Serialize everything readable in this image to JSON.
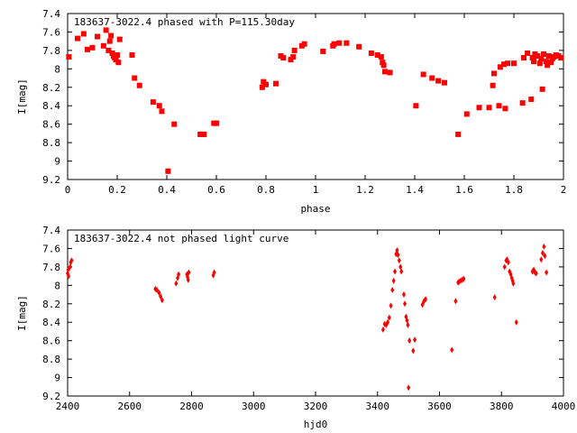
{
  "colors": {
    "points": "#ff0000",
    "axes": "#000000",
    "background": "#ffffff"
  },
  "chart_data": [
    {
      "type": "scatter",
      "title": "183637-3022.4 phased with P=115.30day",
      "xlabel": "phase",
      "ylabel": "I[mag]",
      "xlim": [
        0,
        2
      ],
      "ylim": [
        7.4,
        9.2
      ],
      "y_inverted": true,
      "grid": false,
      "legend": "none",
      "marker": "filled-square",
      "xticks": [
        "0",
        "0.2",
        "0.4",
        "0.6",
        "0.8",
        "1",
        "1.2",
        "1.4",
        "1.6",
        "1.8",
        "2"
      ],
      "yticks": [
        "7.4",
        "7.6",
        "7.8",
        "8",
        "8.2",
        "8.4",
        "8.6",
        "8.8",
        "9",
        "9.2"
      ],
      "points": [
        [
          0.005,
          7.87
        ],
        [
          0.04,
          7.67
        ],
        [
          0.065,
          7.62
        ],
        [
          0.08,
          7.79
        ],
        [
          0.1,
          7.77
        ],
        [
          0.12,
          7.65
        ],
        [
          0.145,
          7.75
        ],
        [
          0.155,
          7.58
        ],
        [
          0.165,
          7.8
        ],
        [
          0.17,
          7.7
        ],
        [
          0.175,
          7.64
        ],
        [
          0.18,
          7.83
        ],
        [
          0.185,
          7.86
        ],
        [
          0.19,
          7.88
        ],
        [
          0.195,
          7.9
        ],
        [
          0.2,
          7.85
        ],
        [
          0.205,
          7.93
        ],
        [
          0.21,
          7.68
        ],
        [
          0.26,
          7.85
        ],
        [
          0.27,
          8.1
        ],
        [
          0.29,
          8.18
        ],
        [
          0.345,
          8.36
        ],
        [
          0.37,
          8.4
        ],
        [
          0.38,
          8.46
        ],
        [
          0.405,
          9.11
        ],
        [
          0.43,
          8.6
        ],
        [
          0.535,
          8.71
        ],
        [
          0.55,
          8.71
        ],
        [
          0.59,
          8.59
        ],
        [
          0.6,
          8.59
        ],
        [
          0.785,
          8.2
        ],
        [
          0.79,
          8.14
        ],
        [
          0.8,
          8.17
        ],
        [
          0.84,
          8.16
        ],
        [
          0.86,
          7.86
        ],
        [
          0.87,
          7.88
        ],
        [
          0.9,
          7.9
        ],
        [
          0.91,
          7.87
        ],
        [
          0.915,
          7.8
        ],
        [
          0.945,
          7.75
        ],
        [
          0.955,
          7.73
        ],
        [
          1.03,
          7.81
        ],
        [
          1.07,
          7.75
        ],
        [
          1.075,
          7.73
        ],
        [
          1.095,
          7.72
        ],
        [
          1.125,
          7.72
        ],
        [
          1.175,
          7.76
        ],
        [
          1.225,
          7.83
        ],
        [
          1.25,
          7.85
        ],
        [
          1.265,
          7.87
        ],
        [
          1.27,
          7.93
        ],
        [
          1.275,
          7.96
        ],
        [
          1.28,
          8.03
        ],
        [
          1.3,
          8.04
        ],
        [
          1.405,
          8.4
        ],
        [
          1.435,
          8.06
        ],
        [
          1.47,
          8.1
        ],
        [
          1.495,
          8.13
        ],
        [
          1.52,
          8.15
        ],
        [
          1.575,
          8.71
        ],
        [
          1.61,
          8.49
        ],
        [
          1.66,
          8.42
        ],
        [
          1.7,
          8.42
        ],
        [
          1.715,
          8.18
        ],
        [
          1.72,
          8.05
        ],
        [
          1.74,
          8.4
        ],
        [
          1.745,
          7.98
        ],
        [
          1.76,
          7.95
        ],
        [
          1.765,
          8.43
        ],
        [
          1.775,
          7.94
        ],
        [
          1.8,
          7.94
        ],
        [
          1.835,
          8.37
        ],
        [
          1.84,
          7.88
        ],
        [
          1.855,
          7.83
        ],
        [
          1.87,
          8.33
        ],
        [
          1.875,
          7.88
        ],
        [
          1.88,
          7.92
        ],
        [
          1.885,
          7.84
        ],
        [
          1.895,
          7.86
        ],
        [
          1.905,
          7.94
        ],
        [
          1.91,
          7.89
        ],
        [
          1.915,
          8.22
        ],
        [
          1.92,
          7.84
        ],
        [
          1.93,
          7.92
        ],
        [
          1.935,
          7.96
        ],
        [
          1.94,
          7.86
        ],
        [
          1.95,
          7.93
        ],
        [
          1.955,
          7.89
        ],
        [
          1.96,
          7.87
        ],
        [
          1.97,
          7.85
        ],
        [
          1.98,
          7.86
        ],
        [
          1.99,
          7.88
        ]
      ]
    },
    {
      "type": "scatter",
      "title": "183637-3022.4 not phased light curve",
      "xlabel": "hjd0",
      "ylabel": "I[mag]",
      "xlim": [
        2400,
        4000
      ],
      "ylim": [
        7.4,
        9.2
      ],
      "y_inverted": true,
      "grid": false,
      "legend": "none",
      "marker": "filled-diamond",
      "xticks": [
        "2400",
        "2600",
        "2800",
        "3000",
        "3200",
        "3400",
        "3600",
        "3800",
        "4000"
      ],
      "yticks": [
        "7.4",
        "7.6",
        "7.8",
        "8",
        "8.2",
        "8.4",
        "8.6",
        "8.8",
        "9",
        "9.2"
      ],
      "points": [
        [
          2400,
          7.87
        ],
        [
          2402,
          7.83
        ],
        [
          2403,
          7.9
        ],
        [
          2408,
          7.8
        ],
        [
          2410,
          7.75
        ],
        [
          2413,
          7.73
        ],
        [
          2683,
          8.04
        ],
        [
          2688,
          8.05
        ],
        [
          2695,
          8.08
        ],
        [
          2700,
          8.12
        ],
        [
          2705,
          8.16
        ],
        [
          2750,
          7.98
        ],
        [
          2755,
          7.92
        ],
        [
          2758,
          7.88
        ],
        [
          2785,
          7.88
        ],
        [
          2787,
          7.91
        ],
        [
          2789,
          7.94
        ],
        [
          2791,
          7.86
        ],
        [
          2870,
          7.89
        ],
        [
          2873,
          7.86
        ],
        [
          3418,
          8.48
        ],
        [
          3423,
          8.42
        ],
        [
          3428,
          8.43
        ],
        [
          3433,
          8.4
        ],
        [
          3438,
          8.35
        ],
        [
          3443,
          8.22
        ],
        [
          3448,
          8.05
        ],
        [
          3452,
          7.95
        ],
        [
          3456,
          7.85
        ],
        [
          3460,
          7.66
        ],
        [
          3463,
          7.62
        ],
        [
          3466,
          7.67
        ],
        [
          3470,
          7.73
        ],
        [
          3474,
          7.8
        ],
        [
          3477,
          7.85
        ],
        [
          3485,
          8.1
        ],
        [
          3488,
          8.2
        ],
        [
          3492,
          8.34
        ],
        [
          3495,
          8.38
        ],
        [
          3498,
          8.43
        ],
        [
          3500,
          9.11
        ],
        [
          3503,
          8.6
        ],
        [
          3515,
          8.71
        ],
        [
          3520,
          8.59
        ],
        [
          3545,
          8.21
        ],
        [
          3550,
          8.17
        ],
        [
          3555,
          8.15
        ],
        [
          3640,
          8.7
        ],
        [
          3652,
          8.17
        ],
        [
          3660,
          7.97
        ],
        [
          3663,
          7.96
        ],
        [
          3668,
          7.95
        ],
        [
          3673,
          7.94
        ],
        [
          3678,
          7.93
        ],
        [
          3778,
          8.13
        ],
        [
          3810,
          7.8
        ],
        [
          3815,
          7.73
        ],
        [
          3818,
          7.72
        ],
        [
          3822,
          7.75
        ],
        [
          3826,
          7.85
        ],
        [
          3830,
          7.88
        ],
        [
          3833,
          7.92
        ],
        [
          3836,
          7.95
        ],
        [
          3838,
          7.98
        ],
        [
          3848,
          8.4
        ],
        [
          3900,
          7.85
        ],
        [
          3904,
          7.83
        ],
        [
          3908,
          7.86
        ],
        [
          3912,
          7.87
        ],
        [
          3928,
          7.72
        ],
        [
          3933,
          7.65
        ],
        [
          3937,
          7.58
        ],
        [
          3940,
          7.68
        ],
        [
          3945,
          7.86
        ]
      ]
    }
  ]
}
